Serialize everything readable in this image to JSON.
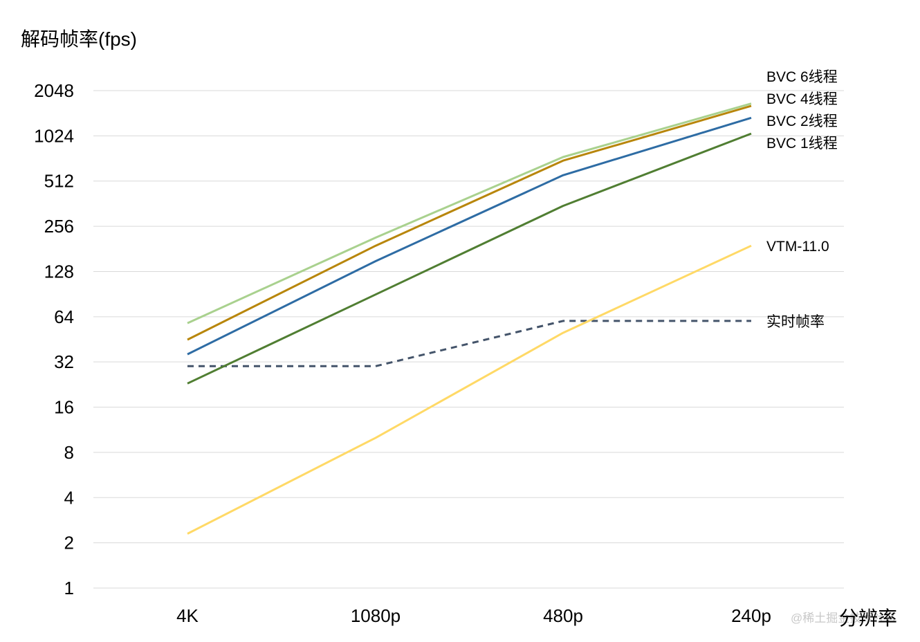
{
  "chart_data": {
    "type": "line",
    "title": "",
    "ylabel": "解码帧率(fps)",
    "xlabel": "分辨率",
    "yscale": "log2",
    "ylim": [
      1,
      2048
    ],
    "yticks": [
      1,
      2,
      4,
      8,
      16,
      32,
      64,
      128,
      256,
      512,
      1024,
      2048
    ],
    "ytick_labels": [
      "1",
      "2",
      "4",
      "8",
      "16",
      "32",
      "64",
      "128",
      "256",
      "512",
      "1024",
      "2048"
    ],
    "categories": [
      "4K",
      "1080p",
      "480p",
      "240p"
    ],
    "grid": "horizontal",
    "legend": "labels at line ends (right)",
    "series": [
      {
        "name": "BVC 6线程",
        "color": "#a9d18e",
        "dash": false,
        "values": [
          58,
          215,
          740,
          1680
        ]
      },
      {
        "name": "BVC 4线程",
        "color": "#b8860b",
        "dash": false,
        "values": [
          45,
          190,
          700,
          1620
        ]
      },
      {
        "name": "BVC 2线程",
        "color": "#2e6ca4",
        "dash": false,
        "values": [
          36,
          150,
          560,
          1350
        ]
      },
      {
        "name": "BVC 1线程",
        "color": "#507e32",
        "dash": false,
        "values": [
          23,
          90,
          350,
          1060
        ]
      },
      {
        "name": "VTM-11.0",
        "color": "#ffd966",
        "dash": false,
        "values": [
          2.3,
          10,
          50,
          190
        ]
      },
      {
        "name": "实时帧率",
        "color": "#44546a",
        "dash": true,
        "values": [
          30,
          30,
          60,
          60
        ]
      }
    ]
  },
  "watermark": "@稀土掘金技术社区"
}
